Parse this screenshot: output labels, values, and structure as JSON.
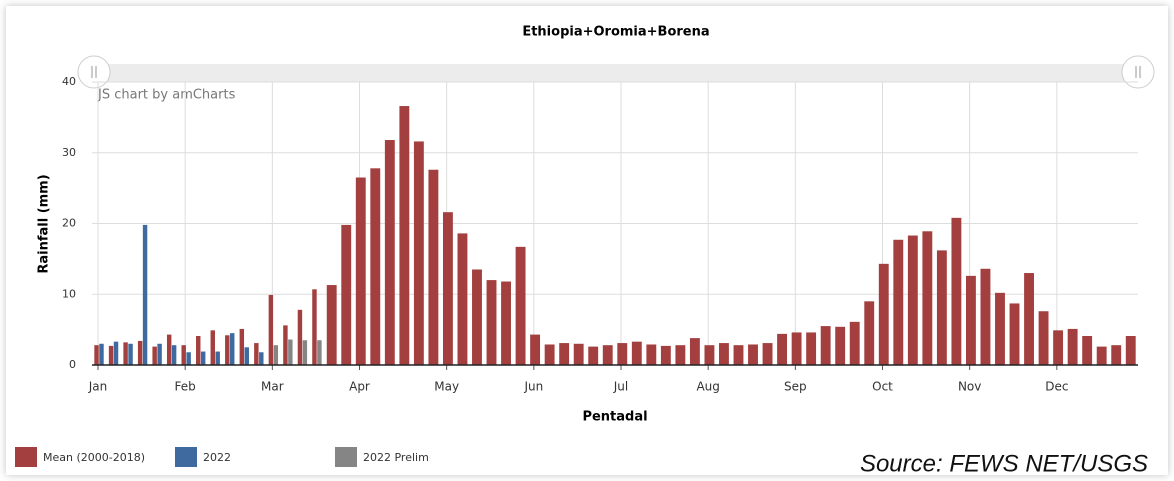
{
  "chart_data": {
    "type": "bar",
    "title": "Ethiopia+Oromia+Borena",
    "credit": "JS chart by amCharts",
    "xlabel": "Pentadal",
    "ylabel": "Rainfall (mm)",
    "source": "Source: FEWS NET/USGS",
    "categories": [
      "Jan",
      null,
      null,
      null,
      null,
      null,
      "Feb",
      null,
      null,
      null,
      null,
      null,
      "Mar",
      null,
      null,
      null,
      null,
      null,
      "Apr",
      null,
      null,
      null,
      null,
      null,
      "May",
      null,
      null,
      null,
      null,
      null,
      "Jun",
      null,
      null,
      null,
      null,
      null,
      "Jul",
      null,
      null,
      null,
      null,
      null,
      "Aug",
      null,
      null,
      null,
      null,
      null,
      "Sep",
      null,
      null,
      null,
      null,
      null,
      "Oct",
      null,
      null,
      null,
      null,
      null,
      "Nov",
      null,
      null,
      null,
      null,
      null,
      "Dec",
      null,
      null,
      null,
      null,
      null
    ],
    "series": [
      {
        "name": "Mean (2000-2018)",
        "color": "#a33f3f",
        "values": [
          2.8,
          2.7,
          3.2,
          3.4,
          2.6,
          4.3,
          2.8,
          4.1,
          4.9,
          4.2,
          5.1,
          3.1,
          9.9,
          5.6,
          7.8,
          10.7,
          11.3,
          19.8,
          26.5,
          27.8,
          31.8,
          36.6,
          31.6,
          27.6,
          21.6,
          18.6,
          13.5,
          12.0,
          11.8,
          16.7,
          4.3,
          2.9,
          3.1,
          3.0,
          2.6,
          2.8,
          3.1,
          3.3,
          2.9,
          2.7,
          2.8,
          3.8,
          2.8,
          3.1,
          2.8,
          2.9,
          3.1,
          4.4,
          4.6,
          4.6,
          5.5,
          5.4,
          6.1,
          9.0,
          14.3,
          17.7,
          18.3,
          18.9,
          16.2,
          20.8,
          12.6,
          13.6,
          10.2,
          8.7,
          13.0,
          7.6,
          4.9,
          5.1,
          4.1,
          2.6,
          2.8,
          4.1
        ]
      },
      {
        "name": "2022",
        "color": "#3e6aa0",
        "values": [
          3.0,
          3.3,
          3.0,
          19.8,
          3.0,
          2.8,
          1.8,
          1.9,
          1.9,
          4.5,
          2.5,
          1.8,
          null,
          null,
          null,
          null,
          null,
          null,
          null,
          null,
          null,
          null,
          null,
          null,
          null,
          null,
          null,
          null,
          null,
          null,
          null,
          null,
          null,
          null,
          null,
          null,
          null,
          null,
          null,
          null,
          null,
          null,
          null,
          null,
          null,
          null,
          null,
          null,
          null,
          null,
          null,
          null,
          null,
          null,
          null,
          null,
          null,
          null,
          null,
          null,
          null,
          null,
          null,
          null,
          null,
          null,
          null,
          null,
          null,
          null,
          null,
          null
        ]
      },
      {
        "name": "2022 Prelim",
        "color": "#858585",
        "values": [
          null,
          null,
          null,
          null,
          null,
          null,
          null,
          null,
          null,
          null,
          null,
          null,
          2.8,
          3.6,
          3.5,
          3.5,
          null,
          null,
          null,
          null,
          null,
          null,
          null,
          null,
          null,
          null,
          null,
          null,
          null,
          null,
          null,
          null,
          null,
          null,
          null,
          null,
          null,
          null,
          null,
          null,
          null,
          null,
          null,
          null,
          null,
          null,
          null,
          null,
          null,
          null,
          null,
          null,
          null,
          null,
          null,
          null,
          null,
          null,
          null,
          null,
          null,
          null,
          null,
          null,
          null,
          null,
          null,
          null,
          null,
          null,
          null,
          null
        ]
      }
    ],
    "ylim": [
      0,
      40
    ],
    "yticks": [
      0,
      10,
      20,
      30,
      40
    ],
    "grid": true,
    "legend": "bottom-left"
  }
}
